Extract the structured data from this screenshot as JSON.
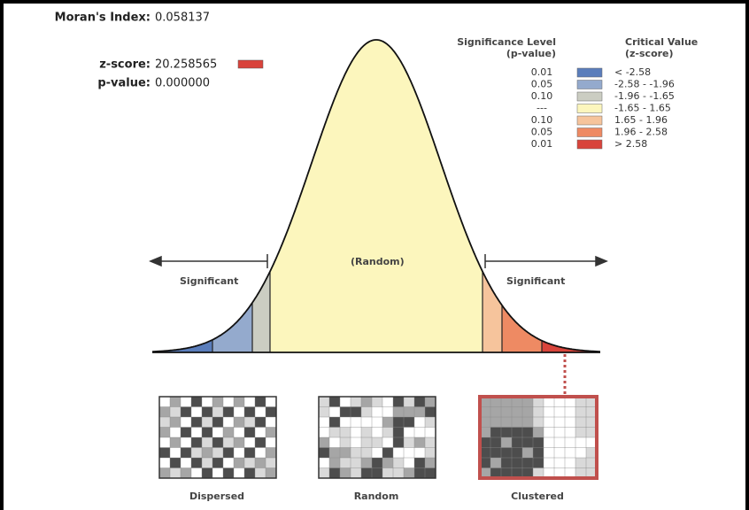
{
  "stats": [
    {
      "label": "Moran's Index:",
      "value": "0.058137"
    },
    {
      "label": "z-score:",
      "value": "20.258565"
    },
    {
      "label": "p-value:",
      "value": "0.000000"
    }
  ],
  "stat_swatch_color": "#d9433b",
  "legend": {
    "header_p": [
      "Significance Level",
      "(p-value)"
    ],
    "header_z": [
      "Critical Value",
      "(z-score)"
    ],
    "rows": [
      {
        "p": "0.01",
        "z": "< -2.58",
        "color": "#5a7dbb"
      },
      {
        "p": "0.05",
        "z": "-2.58 - -1.96",
        "color": "#94aacd"
      },
      {
        "p": "0.10",
        "z": "-1.96 - -1.65",
        "color": "#cbcdc2"
      },
      {
        "p": "---",
        "z": "-1.65 - 1.65",
        "color": "#fcf6bd"
      },
      {
        "p": "0.10",
        "z": "1.65 - 1.96",
        "color": "#f6c49c"
      },
      {
        "p": "0.05",
        "z": "1.96 - 2.58",
        "color": "#ee8a63"
      },
      {
        "p": "0.01",
        "z": "> 2.58",
        "color": "#d8443b"
      }
    ]
  },
  "curve": {
    "center_label": "(Random)",
    "left_label": "Significant",
    "right_label": "Significant"
  },
  "maps": [
    {
      "label": "Dispersed"
    },
    {
      "label": "Random"
    },
    {
      "label": "Clustered"
    }
  ]
}
